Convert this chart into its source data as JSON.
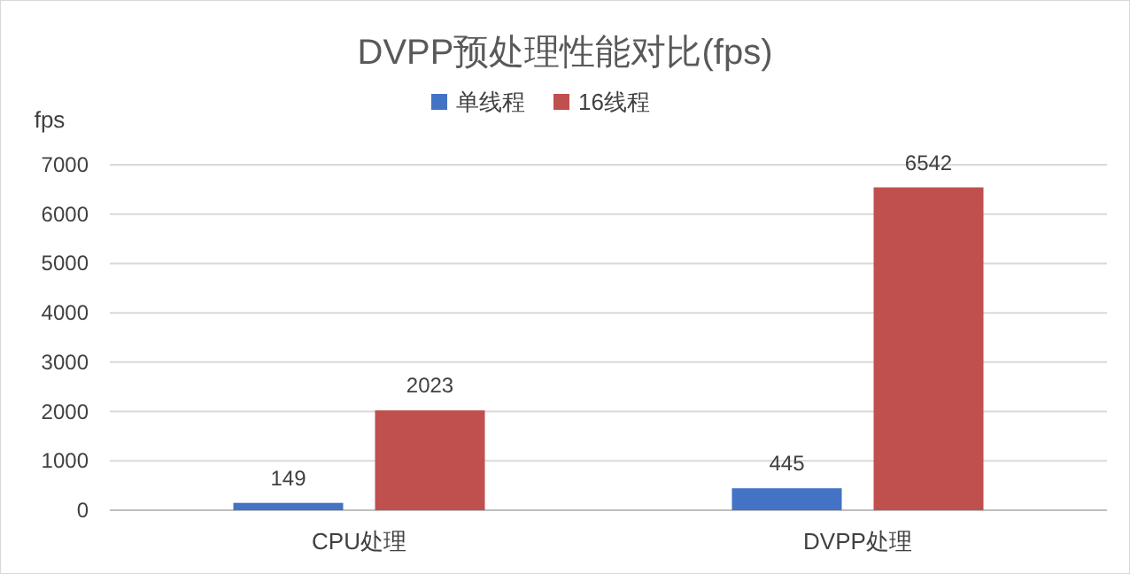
{
  "chart_data": {
    "type": "bar",
    "title": "DVPP预处理性能对比(fps)",
    "ylabel": "fps",
    "categories": [
      "CPU处理",
      "DVPP处理"
    ],
    "series": [
      {
        "name": "单线程",
        "color": "#4472c4",
        "values": [
          149,
          445
        ]
      },
      {
        "name": "16线程",
        "color": "#c0504d",
        "values": [
          2023,
          6542
        ]
      }
    ],
    "ylim": [
      0,
      7000
    ],
    "yticks": [
      0,
      1000,
      2000,
      3000,
      4000,
      5000,
      6000,
      7000
    ],
    "grid": "y",
    "legend": "top",
    "data_labels": true
  }
}
